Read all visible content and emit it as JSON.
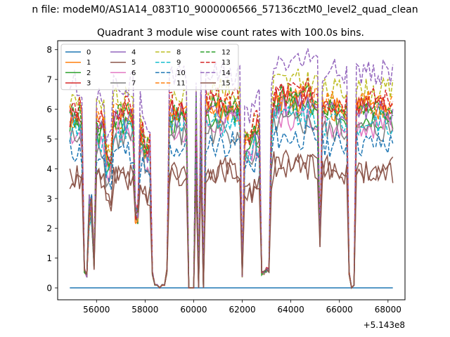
{
  "figure": {
    "suptitle": "n file: modeM0/AS1A14_083T10_9000006566_57136cztM0_level2_quad_clean",
    "title": "Quadrant 3 module wise count rates with 100.0s bins.",
    "offset_label": "+5.143e8"
  },
  "chart_data": {
    "type": "line",
    "title": "Quadrant 3 module wise count rates with 100.0s bins.",
    "xlabel": "",
    "ylabel": "",
    "x_offset": 514300000,
    "xlim": [
      54400,
      68700
    ],
    "ylim": [
      -0.4,
      8.3
    ],
    "xticks": [
      56000,
      58000,
      60000,
      62000,
      64000,
      66000,
      68000
    ],
    "xtick_labels": [
      "56000",
      "58000",
      "60000",
      "62000",
      "64000",
      "66000",
      "68000"
    ],
    "yticks": [
      0,
      1,
      2,
      3,
      4,
      5,
      6,
      7,
      8
    ],
    "ytick_labels": [
      "0",
      "1",
      "2",
      "3",
      "4",
      "5",
      "6",
      "7",
      "8"
    ],
    "grid": false,
    "legend": {
      "placement": "upper-left",
      "columns": 4
    },
    "x_segments": [
      [
        54900,
        55100,
        56700
      ],
      [
        57700,
        58800,
        59700
      ],
      [
        60600,
        61000,
        62000
      ],
      [
        62000,
        62300,
        62800
      ],
      [
        63200,
        63600,
        65200
      ],
      [
        65300,
        65600,
        66300
      ],
      [
        66700,
        67000,
        68200
      ]
    ],
    "dropouts": [
      [
        55470,
        0.6
      ],
      [
        55550,
        0.4
      ],
      [
        55870,
        0.7
      ],
      [
        57650,
        2.5
      ],
      [
        58300,
        0.5
      ],
      [
        58450,
        0.1
      ],
      [
        58600,
        0.0
      ],
      [
        58750,
        0.1
      ],
      [
        58900,
        0.6
      ],
      [
        59850,
        0.0
      ],
      [
        60000,
        0.0
      ],
      [
        60200,
        0.0
      ],
      [
        60400,
        0.0
      ],
      [
        61000,
        6.0
      ],
      [
        62000,
        0.4
      ],
      [
        62850,
        0.5
      ],
      [
        63050,
        0.6
      ],
      [
        65200,
        1.6
      ],
      [
        66400,
        0.5
      ],
      [
        66500,
        0.0
      ],
      [
        66600,
        0.1
      ]
    ],
    "series": [
      {
        "name": "0",
        "color": "#1f77b4",
        "dash": "solid",
        "level": 0.0,
        "seed": 1
      },
      {
        "name": "1",
        "color": "#ff7f0e",
        "dash": "solid",
        "level": 5.7,
        "seed": 2
      },
      {
        "name": "2",
        "color": "#2ca02c",
        "dash": "solid",
        "level": 5.5,
        "seed": 3
      },
      {
        "name": "3",
        "color": "#d62728",
        "dash": "solid",
        "level": 5.8,
        "seed": 4
      },
      {
        "name": "4",
        "color": "#9467bd",
        "dash": "solid",
        "level": 5.6,
        "seed": 5
      },
      {
        "name": "5",
        "color": "#8c564b",
        "dash": "solid",
        "level": 3.8,
        "seed": 6
      },
      {
        "name": "6",
        "color": "#e377c2",
        "dash": "solid",
        "level": 5.2,
        "seed": 7
      },
      {
        "name": "7",
        "color": "#7f7f7f",
        "dash": "solid",
        "level": 5.0,
        "seed": 8
      },
      {
        "name": "8",
        "color": "#bcbd22",
        "dash": "dashed",
        "level": 6.3,
        "seed": 9
      },
      {
        "name": "9",
        "color": "#17becf",
        "dash": "dashed",
        "level": 5.3,
        "seed": 10
      },
      {
        "name": "10",
        "color": "#1f77b4",
        "dash": "dashed",
        "level": 4.6,
        "seed": 11
      },
      {
        "name": "11",
        "color": "#ff7f0e",
        "dash": "dashed",
        "level": 5.9,
        "seed": 12
      },
      {
        "name": "12",
        "color": "#2ca02c",
        "dash": "dashed",
        "level": 5.8,
        "seed": 13
      },
      {
        "name": "13",
        "color": "#d62728",
        "dash": "dashed",
        "level": 6.0,
        "seed": 14
      },
      {
        "name": "14",
        "color": "#9467bd",
        "dash": "dashed",
        "level": 6.9,
        "seed": 15
      },
      {
        "name": "15",
        "color": "#8c564b",
        "dash": "solid",
        "level": 3.7,
        "seed": 16
      }
    ]
  }
}
